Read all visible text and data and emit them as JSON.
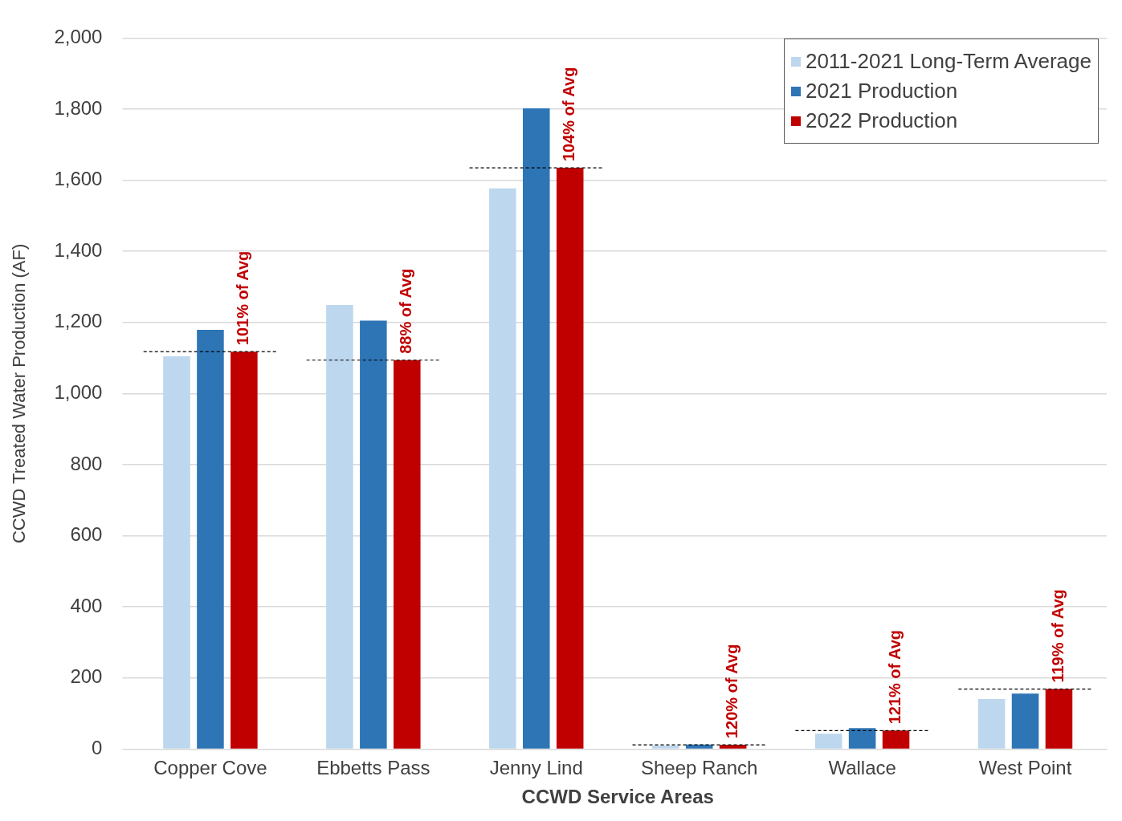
{
  "chart_data": {
    "type": "bar",
    "xlabel": "CCWD Service Areas",
    "ylabel": "CCWD Treated Water Production (AF)",
    "categories": [
      "Copper Cove",
      "Ebbetts Pass",
      "Jenny Lind",
      "Sheep Ranch",
      "Wallace",
      "West Point"
    ],
    "series": [
      {
        "name": "2011-2021 Long-Term Average",
        "color": "#bdd7ee",
        "values": [
          1105,
          1249,
          1577,
          10,
          43,
          141
        ]
      },
      {
        "name": "2021 Production",
        "color": "#2e75b6",
        "values": [
          1179,
          1205,
          1802,
          13,
          59,
          156
        ]
      },
      {
        "name": "2022 Production",
        "color": "#c00000",
        "values": [
          1118,
          1094,
          1635,
          12,
          52,
          169
        ]
      }
    ],
    "ref_lines": [
      {
        "axis": "y",
        "value": 1118,
        "color": "#000000",
        "line_style": "dashed"
      },
      {
        "axis": "y",
        "value": 1094,
        "color": "#000000",
        "line_style": "dashed"
      },
      {
        "axis": "y",
        "value": 1635,
        "color": "#000000",
        "line_style": "dashed"
      },
      {
        "axis": "y",
        "value": 12,
        "color": "#000000",
        "line_style": "dashed"
      },
      {
        "axis": "y",
        "value": 52,
        "color": "#000000",
        "line_style": "dashed"
      },
      {
        "axis": "y",
        "value": 169,
        "color": "#000000",
        "line_style": "dashed"
      }
    ],
    "annotations": [
      {
        "text": "101% of Avg",
        "x": "Copper Cove",
        "y": 1118
      },
      {
        "text": "88% of Avg",
        "x": "Ebbetts Pass",
        "y": 1094
      },
      {
        "text": "104% of Avg",
        "x": "Jenny Lind",
        "y": 1635
      },
      {
        "text": "120% of Avg",
        "x": "Sheep Ranch",
        "y": 12
      },
      {
        "text": "121% of Avg",
        "x": "Wallace",
        "y": 52
      },
      {
        "text": "119% of Avg",
        "x": "West Point",
        "y": 169
      }
    ],
    "ylim": [
      0,
      2000
    ],
    "yticks": [
      0,
      200,
      400,
      600,
      800,
      {
        "value": 1000,
        "label": "1,000"
      },
      {
        "value": 1200,
        "label": "1,200"
      },
      {
        "value": 1400,
        "label": "1,400"
      },
      {
        "value": 1600,
        "label": "1,600"
      },
      {
        "value": 1800,
        "label": "1,800"
      },
      {
        "value": 2000,
        "label": "2,000"
      }
    ],
    "grid": "y",
    "legend": "top right"
  }
}
